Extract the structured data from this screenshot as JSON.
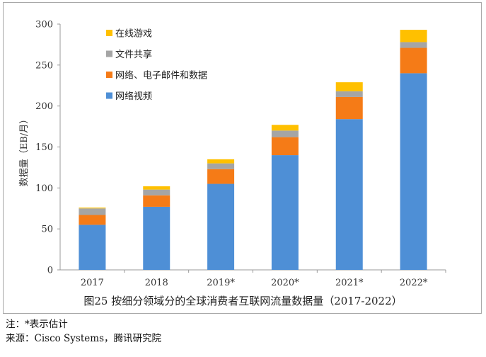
{
  "chart_data": {
    "type": "bar",
    "stacked": true,
    "categories": [
      "2017",
      "2018",
      "2019*",
      "2020*",
      "2021*",
      "2022*"
    ],
    "series": [
      {
        "name": "网络视频",
        "color": "#4e8fd6",
        "values": [
          55,
          77,
          105,
          140,
          184,
          240
        ]
      },
      {
        "name": "网络、电子邮件和数据",
        "color": "#f57b17",
        "values": [
          12,
          14,
          18,
          22,
          27,
          31
        ]
      },
      {
        "name": "文件共享",
        "color": "#a5a5a5",
        "values": [
          8,
          7,
          7,
          8,
          7,
          7
        ]
      },
      {
        "name": "在线游戏",
        "color": "#ffc000",
        "values": [
          1,
          4,
          5,
          7,
          11,
          15
        ]
      }
    ],
    "ylabel": "数据量（EB/月）",
    "ylim": [
      0,
      300
    ],
    "yticks": [
      0,
      50,
      100,
      150,
      200,
      250,
      300
    ],
    "grid": false,
    "legend": "top-left"
  },
  "caption": "图25  按细分领域分的全球消费者互联网流量数据量（2017-2022）",
  "notes": {
    "note": "注：*表示估计",
    "source": "来源：Cisco Systems，腾讯研究院"
  }
}
